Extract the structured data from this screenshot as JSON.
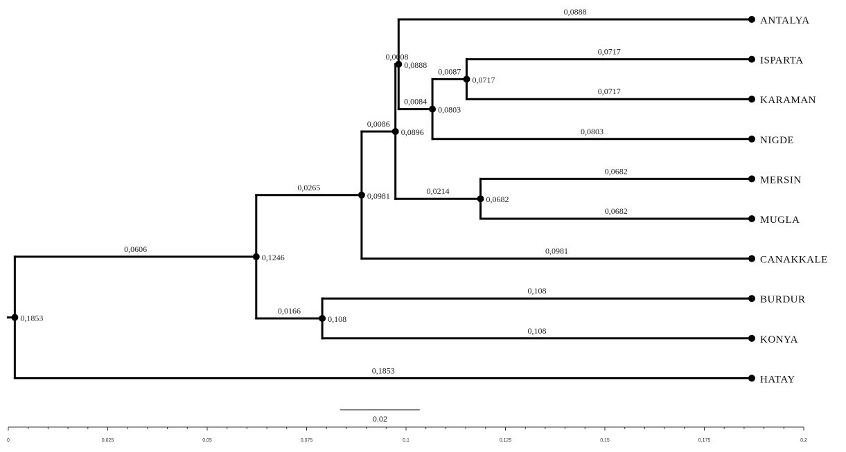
{
  "chart_data": {
    "type": "dendrogram",
    "axis": {
      "min": 0,
      "max": 0.2,
      "major_step": 0.025,
      "minor_step": 0.005,
      "tick_labels": [
        "0",
        "0,025",
        "0,05",
        "0,075",
        "0,1",
        "0,125",
        "0,15",
        "0,175",
        "0,2"
      ]
    },
    "scale_bar": {
      "value": 0.02,
      "label": "0.02"
    },
    "tree": {
      "height": 0.1853,
      "height_label": "0,1853",
      "children": [
        {
          "height": 0.1246,
          "height_label": "0,1246",
          "branch_label": "0,0606",
          "children": [
            {
              "height": 0.0981,
              "height_label": "0,0981",
              "branch_label": "0,0265",
              "children": [
                {
                  "height": 0.0896,
                  "height_label": "0,0896",
                  "branch_label": "0,0086",
                  "children": [
                    {
                      "height": 0.0888,
                      "height_label": "0,0888",
                      "branch_label": "0,0008",
                      "children": [
                        {
                          "name": "ANTALYA",
                          "branch_label": "0,0888"
                        },
                        {
                          "height": 0.0803,
                          "height_label": "0,0803",
                          "branch_label": "0,0084",
                          "children": [
                            {
                              "height": 0.0717,
                              "height_label": "0,0717",
                              "branch_label": "0,0087",
                              "children": [
                                {
                                  "name": "ISPARTA",
                                  "branch_label": "0,0717"
                                },
                                {
                                  "name": "KARAMAN",
                                  "branch_label": "0,0717"
                                }
                              ]
                            },
                            {
                              "name": "NIGDE",
                              "branch_label": "0,0803"
                            }
                          ]
                        }
                      ]
                    },
                    {
                      "height": 0.0682,
                      "height_label": "0,0682",
                      "branch_label": "0,0214",
                      "children": [
                        {
                          "name": "MERSIN",
                          "branch_label": "0,0682"
                        },
                        {
                          "name": "MUGLA",
                          "branch_label": "0,0682"
                        }
                      ]
                    }
                  ]
                },
                {
                  "name": "CANAKKALE",
                  "branch_label": "0,0981"
                }
              ]
            },
            {
              "height": 0.108,
              "height_label": "0,108",
              "branch_label": "0,0166",
              "children": [
                {
                  "name": "BURDUR",
                  "branch_label": "0,108"
                },
                {
                  "name": "KONYA",
                  "branch_label": "0,108"
                }
              ]
            }
          ]
        },
        {
          "name": "HATAY",
          "branch_label": "0,1853"
        }
      ]
    }
  }
}
